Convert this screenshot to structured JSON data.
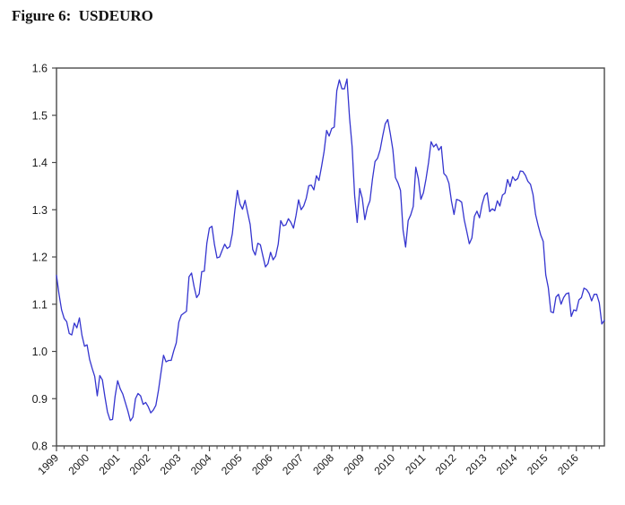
{
  "figure": {
    "title": "Figure 6:  USDEURO"
  },
  "chart_data": {
    "type": "line",
    "title": "USDEURO",
    "frequency": "monthly",
    "legend": "none",
    "grid": "off",
    "line_color": "#3535cf",
    "axis_color": "#4a4a4a",
    "ylim": [
      0.8,
      1.6
    ],
    "y_tick_labels": [
      "0.8",
      "0.9",
      "1.0",
      "1.1",
      "1.2",
      "1.3",
      "1.4",
      "1.5",
      "1.6"
    ],
    "x_tick_labels": [
      "1999",
      "2000",
      "2001",
      "2002",
      "2003",
      "2004",
      "2005",
      "2006",
      "2007",
      "2008",
      "2009",
      "2010",
      "2011",
      "2012",
      "2013",
      "2014",
      "2015",
      "2016"
    ],
    "minor_ticks_per_year": 4,
    "values": [
      1.161,
      1.121,
      1.088,
      1.07,
      1.063,
      1.038,
      1.035,
      1.06,
      1.05,
      1.071,
      1.034,
      1.011,
      1.014,
      0.983,
      0.964,
      0.947,
      0.906,
      0.949,
      0.94,
      0.904,
      0.872,
      0.855,
      0.856,
      0.905,
      0.938,
      0.921,
      0.91,
      0.892,
      0.874,
      0.853,
      0.861,
      0.9,
      0.911,
      0.906,
      0.888,
      0.892,
      0.883,
      0.87,
      0.876,
      0.886,
      0.917,
      0.955,
      0.992,
      0.978,
      0.981,
      0.981,
      1.001,
      1.018,
      1.062,
      1.077,
      1.081,
      1.085,
      1.158,
      1.166,
      1.137,
      1.114,
      1.122,
      1.169,
      1.17,
      1.229,
      1.261,
      1.265,
      1.226,
      1.198,
      1.2,
      1.214,
      1.227,
      1.218,
      1.222,
      1.249,
      1.299,
      1.341,
      1.312,
      1.301,
      1.32,
      1.294,
      1.269,
      1.216,
      1.204,
      1.229,
      1.226,
      1.202,
      1.179,
      1.186,
      1.21,
      1.194,
      1.202,
      1.227,
      1.277,
      1.266,
      1.268,
      1.281,
      1.273,
      1.261,
      1.288,
      1.321,
      1.3,
      1.308,
      1.324,
      1.351,
      1.352,
      1.342,
      1.372,
      1.362,
      1.391,
      1.423,
      1.468,
      1.456,
      1.472,
      1.475,
      1.552,
      1.575,
      1.556,
      1.556,
      1.577,
      1.495,
      1.434,
      1.33,
      1.273,
      1.345,
      1.324,
      1.279,
      1.305,
      1.319,
      1.365,
      1.402,
      1.409,
      1.427,
      1.456,
      1.482,
      1.491,
      1.461,
      1.427,
      1.368,
      1.357,
      1.341,
      1.257,
      1.221,
      1.277,
      1.289,
      1.307,
      1.39,
      1.366,
      1.322,
      1.336,
      1.365,
      1.4,
      1.444,
      1.433,
      1.439,
      1.426,
      1.434,
      1.377,
      1.371,
      1.356,
      1.318,
      1.29,
      1.322,
      1.32,
      1.316,
      1.279,
      1.254,
      1.228,
      1.24,
      1.286,
      1.297,
      1.283,
      1.311,
      1.33,
      1.336,
      1.296,
      1.302,
      1.298,
      1.319,
      1.308,
      1.331,
      1.335,
      1.364,
      1.349,
      1.37,
      1.362,
      1.366,
      1.382,
      1.381,
      1.373,
      1.36,
      1.354,
      1.332,
      1.29,
      1.267,
      1.247,
      1.233,
      1.162,
      1.135,
      1.084,
      1.082,
      1.115,
      1.121,
      1.1,
      1.114,
      1.122,
      1.124,
      1.074,
      1.088,
      1.086,
      1.109,
      1.114,
      1.134,
      1.131,
      1.123,
      1.107,
      1.121,
      1.121,
      1.103,
      1.058,
      1.066
    ]
  }
}
